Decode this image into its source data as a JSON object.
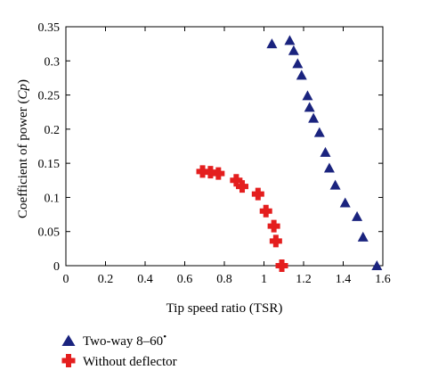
{
  "chart_data": {
    "type": "scatter",
    "xlabel": "Tip speed ratio (TSR)",
    "ylabel": "Coefficient of power (Cp)",
    "ylabel_parts": [
      "Coefficient of power (",
      "Cp",
      ")"
    ],
    "xlim": [
      0,
      1.6
    ],
    "ylim": [
      0,
      0.35
    ],
    "x_ticks": [
      "0",
      "0.2",
      "0.4",
      "0.6",
      "0.8",
      "1",
      "1.2",
      "1.4",
      "1.6"
    ],
    "x_tick_values": [
      0,
      0.2,
      0.4,
      0.6,
      0.8,
      1.0,
      1.2,
      1.4,
      1.6
    ],
    "y_ticks": [
      "0",
      "0.05",
      "0.1",
      "0.15",
      "0.2",
      "0.25",
      "0.3",
      "0.35"
    ],
    "y_tick_values": [
      0,
      0.05,
      0.1,
      0.15,
      0.2,
      0.25,
      0.3,
      0.35
    ],
    "grid": false,
    "legend_position": "bottom-left, below plot",
    "series": [
      {
        "name": "Two-way 8–60°",
        "name_text": "Two-way 8–60",
        "name_sup": "•",
        "marker": "triangle",
        "color": "#1a237e",
        "points": [
          [
            1.04,
            0.325
          ],
          [
            1.13,
            0.33
          ],
          [
            1.15,
            0.315
          ],
          [
            1.17,
            0.296
          ],
          [
            1.19,
            0.279
          ],
          [
            1.22,
            0.249
          ],
          [
            1.23,
            0.232
          ],
          [
            1.25,
            0.216
          ],
          [
            1.28,
            0.195
          ],
          [
            1.31,
            0.166
          ],
          [
            1.33,
            0.143
          ],
          [
            1.36,
            0.118
          ],
          [
            1.41,
            0.092
          ],
          [
            1.47,
            0.072
          ],
          [
            1.5,
            0.042
          ],
          [
            1.57,
            0.0
          ]
        ]
      },
      {
        "name": "Without deflector",
        "marker": "plus",
        "color": "#e41e1e",
        "points": [
          [
            0.69,
            0.138
          ],
          [
            0.73,
            0.137
          ],
          [
            0.77,
            0.135
          ],
          [
            0.86,
            0.125
          ],
          [
            0.89,
            0.116
          ],
          [
            0.97,
            0.105
          ],
          [
            1.01,
            0.08
          ],
          [
            1.05,
            0.058
          ],
          [
            1.06,
            0.036
          ],
          [
            1.09,
            0.0
          ]
        ]
      }
    ]
  }
}
